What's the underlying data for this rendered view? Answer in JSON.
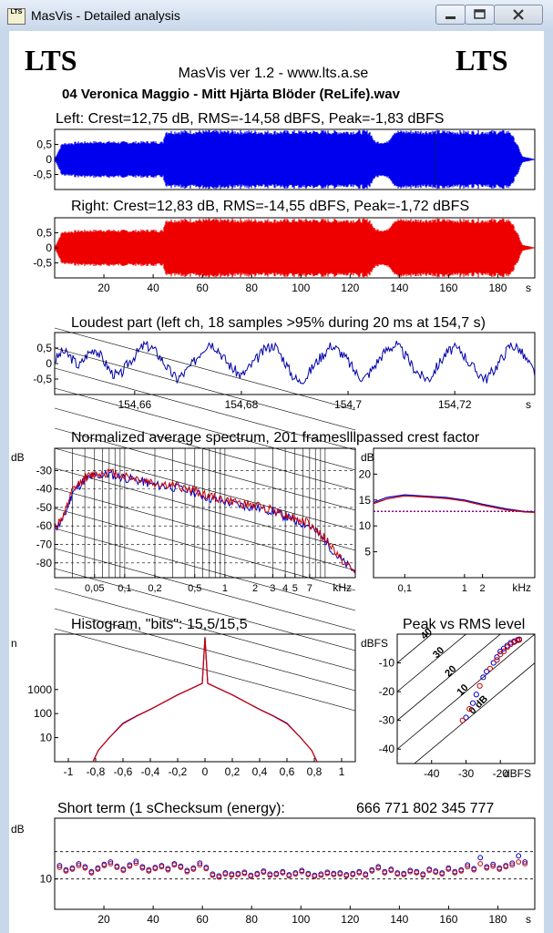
{
  "window": {
    "title": "MasVis - Detailed analysis",
    "icon_text": "LTS",
    "minimize_icon": "minimize-icon",
    "maximize_icon": "maximize-icon",
    "close_icon": "close-icon"
  },
  "header": {
    "logo_left": "LTS",
    "logo_right": "LTS",
    "app_version": "MasVis ver 1.2 - www.lts.a.se",
    "filename": "04 Veronica Maggio - Mitt Hjärta Blöder (ReLife).wav"
  },
  "chart_data": [
    {
      "type": "line",
      "title": "Left: Crest=12,75 dB, RMS=-14,58 dBFS, Peak=-1,83 dBFS",
      "y_ticks": [
        "0,5",
        "0",
        "-0,5"
      ],
      "ylim": [
        -1,
        1
      ],
      "xlim": [
        0,
        195
      ],
      "series": [
        {
          "values": [
            {
              "t": 0,
              "env": 0.02
            },
            {
              "t": 3,
              "env": 0.55
            },
            {
              "t": 10,
              "env": 0.6
            },
            {
              "t": 20,
              "env": 0.62
            },
            {
              "t": 30,
              "env": 0.6
            },
            {
              "t": 40,
              "env": 0.62
            },
            {
              "t": 44,
              "env": 0.6
            },
            {
              "t": 45,
              "env": 0.98
            },
            {
              "t": 70,
              "env": 0.98
            },
            {
              "t": 90,
              "env": 0.97
            },
            {
              "t": 108,
              "env": 0.98
            },
            {
              "t": 112,
              "env": 0.97
            },
            {
              "t": 128,
              "env": 0.98
            },
            {
              "t": 130,
              "env": 0.62
            },
            {
              "t": 135,
              "env": 0.6
            },
            {
              "t": 138,
              "env": 0.98
            },
            {
              "t": 155,
              "env": 0.98
            },
            {
              "t": 168,
              "env": 0.97
            },
            {
              "t": 185,
              "env": 0.98
            },
            {
              "t": 188,
              "env": 0.5
            },
            {
              "t": 190,
              "env": 0.1
            },
            {
              "t": 195,
              "env": 0.01
            }
          ]
        }
      ],
      "marker_at": 154.7
    },
    {
      "type": "line",
      "title": "Right: Crest=12,83 dB, RMS=-14,55 dBFS, Peak=-1,72 dBFS",
      "y_ticks": [
        "0,5",
        "0",
        "-0,5"
      ],
      "x_ticks": [
        "20",
        "40",
        "60",
        "80",
        "100",
        "120",
        "140",
        "160",
        "180"
      ],
      "x_tick_values": [
        20,
        40,
        60,
        80,
        100,
        120,
        140,
        160,
        180
      ],
      "x_unit": "s",
      "ylim": [
        -1,
        1
      ],
      "xlim": [
        0,
        195
      ],
      "series": [
        {
          "values": [
            {
              "t": 0,
              "env": 0.02
            },
            {
              "t": 3,
              "env": 0.55
            },
            {
              "t": 10,
              "env": 0.6
            },
            {
              "t": 20,
              "env": 0.62
            },
            {
              "t": 30,
              "env": 0.6
            },
            {
              "t": 40,
              "env": 0.62
            },
            {
              "t": 44,
              "env": 0.6
            },
            {
              "t": 45,
              "env": 0.98
            },
            {
              "t": 70,
              "env": 0.98
            },
            {
              "t": 90,
              "env": 0.97
            },
            {
              "t": 108,
              "env": 0.98
            },
            {
              "t": 112,
              "env": 0.97
            },
            {
              "t": 128,
              "env": 0.98
            },
            {
              "t": 130,
              "env": 0.65
            },
            {
              "t": 135,
              "env": 0.62
            },
            {
              "t": 138,
              "env": 0.98
            },
            {
              "t": 155,
              "env": 0.98
            },
            {
              "t": 168,
              "env": 0.97
            },
            {
              "t": 185,
              "env": 0.98
            },
            {
              "t": 188,
              "env": 0.5
            },
            {
              "t": 190,
              "env": 0.1
            },
            {
              "t": 195,
              "env": 0.01
            }
          ]
        }
      ]
    },
    {
      "type": "line",
      "title": "Loudest part (left ch, 18 samples >95% during 20 ms at 154,7 s)",
      "y_ticks": [
        "0,5",
        "0",
        "-0,5"
      ],
      "x_ticks": [
        "154,66",
        "154,68",
        "154,7",
        "154,72"
      ],
      "x_tick_values": [
        154.66,
        154.68,
        154.7,
        154.72
      ],
      "x_unit": "s",
      "xlim": [
        154.645,
        154.735
      ],
      "ylim": [
        -1,
        1
      ],
      "series": [
        {
          "values": [
            0.1,
            0.4,
            0.2,
            -0.1,
            0.3,
            0.5,
            0.1,
            -0.3,
            -0.4,
            0.0,
            0.3,
            0.6,
            0.5,
            0.2,
            -0.2,
            -0.5,
            -0.3,
            0.0,
            0.4,
            0.7,
            0.5,
            0.1,
            -0.2,
            -0.4,
            -0.1,
            0.2,
            0.5,
            0.6,
            0.2,
            -0.3,
            -0.6,
            -0.4,
            0.0,
            0.3,
            0.6,
            0.4,
            0.1,
            -0.3,
            -0.5,
            -0.2,
            0.2,
            0.5,
            0.6,
            0.3,
            -0.1,
            -0.4,
            -0.5,
            -0.1,
            0.3,
            0.5,
            0.4,
            0.0,
            -0.3,
            -0.5,
            -0.2,
            0.2,
            0.6,
            0.5,
            0.1,
            -0.3
          ]
        }
      ]
    },
    {
      "type": "line",
      "title": "Normalized average spectrum, 201 frameslllpassed crest factor",
      "ylabel": "dB",
      "y_ticks": [
        "-30",
        "-40",
        "-50",
        "-60",
        "-70",
        "-80"
      ],
      "y_tick_values": [
        -30,
        -40,
        -50,
        -60,
        -70,
        -80
      ],
      "ylim": [
        -88,
        -18
      ],
      "x_ticks": [
        "0,05",
        "0,1",
        "0,2",
        "0,5",
        "1",
        "2",
        "3",
        "4",
        "5",
        "7"
      ],
      "x_tick_values": [
        0.05,
        0.1,
        0.2,
        0.5,
        1,
        2,
        3,
        4,
        5,
        7
      ],
      "x_unit": "kHz",
      "xlim": [
        0.02,
        20
      ],
      "x_scale": "log",
      "series": [
        {
          "color": "#0000cc",
          "x": [
            0.02,
            0.025,
            0.03,
            0.04,
            0.05,
            0.07,
            0.1,
            0.15,
            0.2,
            0.3,
            0.5,
            0.7,
            1,
            1.5,
            2,
            3,
            4,
            5,
            7,
            10,
            14,
            20
          ],
          "y": [
            -62,
            -55,
            -42,
            -35,
            -33,
            -32,
            -34,
            -36,
            -38,
            -39,
            -42,
            -45,
            -47,
            -49,
            -50,
            -52,
            -55,
            -57,
            -60,
            -68,
            -78,
            -85
          ]
        },
        {
          "color": "#cc0000",
          "x": [
            0.02,
            0.025,
            0.03,
            0.04,
            0.05,
            0.07,
            0.1,
            0.15,
            0.2,
            0.3,
            0.5,
            0.7,
            1,
            1.5,
            2,
            3,
            4,
            5,
            7,
            10,
            14,
            20
          ],
          "y": [
            -61,
            -54,
            -41,
            -34,
            -32,
            -31,
            -33,
            -35,
            -37,
            -38,
            -41,
            -44,
            -46,
            -48,
            -49,
            -51,
            -54,
            -56,
            -59,
            -67,
            -77,
            -86
          ]
        }
      ]
    },
    {
      "type": "line",
      "ylabel": "dB",
      "y_ticks": [
        "20",
        "15",
        "10",
        "5"
      ],
      "y_tick_values": [
        20,
        15,
        10,
        5
      ],
      "ylim": [
        0,
        25
      ],
      "x_ticks": [
        "0,1",
        "1",
        "2"
      ],
      "x_tick_values": [
        0.1,
        1,
        2
      ],
      "x_unit": "kHz",
      "xlim": [
        0.03,
        15
      ],
      "x_scale": "log",
      "reference_level": 12.8,
      "series": [
        {
          "color": "#0000cc",
          "x": [
            0.03,
            0.05,
            0.1,
            0.2,
            0.5,
            1,
            2,
            5,
            10,
            15
          ],
          "y": [
            14.5,
            15.5,
            16.0,
            15.8,
            15.5,
            15.0,
            14.2,
            13.3,
            12.8,
            12.7
          ]
        },
        {
          "color": "#cc0000",
          "x": [
            0.03,
            0.05,
            0.1,
            0.2,
            0.5,
            1,
            2,
            5,
            10,
            15
          ],
          "y": [
            14.3,
            15.2,
            15.8,
            15.6,
            15.3,
            14.8,
            14.0,
            13.1,
            12.7,
            12.6
          ]
        }
      ]
    },
    {
      "type": "line",
      "title": "Histogram, \"bits\": 15,5/15,5",
      "ylabel": "n",
      "y_ticks": [
        "1000",
        "100",
        "10"
      ],
      "y_tick_values": [
        1000,
        100,
        10
      ],
      "ylim": [
        1,
        200000
      ],
      "y_scale": "log",
      "x_ticks": [
        "-1",
        "-0,8",
        "-0,6",
        "-0,4",
        "-0,2",
        "0",
        "0,2",
        "0,4",
        "0,6",
        "0,8",
        "1"
      ],
      "x_tick_values": [
        -1,
        -0.8,
        -0.6,
        -0.4,
        -0.2,
        0,
        0.2,
        0.4,
        0.6,
        0.8,
        1
      ],
      "xlim": [
        -1.1,
        1.1
      ],
      "series": [
        {
          "color": "#0000cc",
          "x": [
            -0.82,
            -0.78,
            -0.7,
            -0.6,
            -0.5,
            -0.4,
            -0.3,
            -0.2,
            -0.1,
            -0.02,
            0,
            0.02,
            0.1,
            0.2,
            0.3,
            0.4,
            0.5,
            0.6,
            0.7,
            0.78,
            0.82
          ],
          "y": [
            1,
            3,
            10,
            40,
            80,
            150,
            300,
            600,
            1100,
            1800,
            150000,
            1800,
            1100,
            600,
            300,
            150,
            80,
            40,
            10,
            3,
            1
          ]
        },
        {
          "color": "#cc0000",
          "x": [
            -0.82,
            -0.78,
            -0.7,
            -0.6,
            -0.5,
            -0.4,
            -0.3,
            -0.2,
            -0.1,
            -0.02,
            0,
            0.02,
            0.1,
            0.2,
            0.3,
            0.4,
            0.5,
            0.6,
            0.7,
            0.78,
            0.82
          ],
          "y": [
            1,
            3,
            10,
            38,
            78,
            148,
            298,
            598,
            1098,
            1790,
            140000,
            1790,
            1098,
            598,
            298,
            148,
            78,
            38,
            10,
            3,
            1
          ]
        }
      ]
    },
    {
      "type": "scatter",
      "title": "Peak vs RMS level",
      "ylabel": "dBFS",
      "y_ticks": [
        "-10",
        "-20",
        "-30",
        "-40"
      ],
      "y_tick_values": [
        -10,
        -20,
        -30,
        -40
      ],
      "ylim": [
        -45,
        0
      ],
      "x_ticks": [
        "-40",
        "-30",
        "-20"
      ],
      "x_tick_values": [
        -40,
        -30,
        -20
      ],
      "x_unit": "dBFS",
      "xlim": [
        -50,
        -10
      ],
      "crest_lines": [
        "40",
        "30",
        "20",
        "10",
        "0 dB"
      ],
      "crest_values": [
        40,
        30,
        20,
        10,
        0
      ],
      "series": [
        {
          "color": "#0000cc",
          "points": [
            [
              -30,
              -29
            ],
            [
              -28,
              -24
            ],
            [
              -27,
              -21
            ],
            [
              -25,
              -15
            ],
            [
              -24,
              -13
            ],
            [
              -22,
              -10
            ],
            [
              -21,
              -8
            ],
            [
              -20,
              -6
            ],
            [
              -19,
              -5
            ],
            [
              -18,
              -4
            ],
            [
              -17,
              -3
            ],
            [
              -16,
              -2.5
            ],
            [
              -15,
              -2
            ],
            [
              -14.5,
              -1.8
            ]
          ]
        },
        {
          "color": "#cc0000",
          "points": [
            [
              -31,
              -30
            ],
            [
              -29,
              -26
            ],
            [
              -26,
              -18
            ],
            [
              -23,
              -12
            ],
            [
              -21,
              -9
            ],
            [
              -20,
              -7
            ],
            [
              -19,
              -6
            ],
            [
              -18,
              -4.5
            ],
            [
              -17,
              -3.5
            ],
            [
              -16,
              -2.8
            ],
            [
              -15,
              -2.2
            ],
            [
              -14.5,
              -2
            ]
          ]
        }
      ]
    },
    {
      "type": "scatter",
      "title": "Short term (1 sChecksum (energy):",
      "checksum": "666 771 802 345 777",
      "ylabel": "dB",
      "y_ticks": [
        "10"
      ],
      "y_tick_values": [
        10
      ],
      "ylim": [
        5,
        20
      ],
      "x_ticks": [
        "20",
        "40",
        "60",
        "80",
        "100",
        "120",
        "140",
        "160",
        "180"
      ],
      "x_tick_values": [
        20,
        40,
        60,
        80,
        100,
        120,
        140,
        160,
        180
      ],
      "x_unit": "s",
      "xlim": [
        0,
        195
      ],
      "reference_lines": [
        14.5,
        10
      ],
      "series": [
        {
          "color": "#0000cc",
          "values": [
            12.2,
            11.5,
            11.8,
            12.5,
            12.0,
            11.2,
            11.8,
            12.4,
            12.8,
            12.1,
            11.6,
            12.3,
            12.9,
            12.0,
            11.5,
            11.9,
            12.2,
            11.7,
            12.5,
            12.1,
            11.4,
            11.8,
            12.6,
            11.9,
            10.8,
            10.5,
            11.0,
            10.8,
            10.9,
            11.1,
            10.6,
            10.9,
            11.3,
            10.8,
            10.9,
            11.2,
            10.7,
            11.0,
            11.4,
            10.9,
            10.6,
            10.8,
            11.1,
            10.9,
            11.0,
            10.7,
            10.9,
            11.2,
            10.8,
            11.5,
            12.0,
            11.2,
            11.6,
            11.0,
            10.9,
            11.4,
            11.2,
            10.8,
            11.6,
            11.3,
            11.0,
            11.8,
            11.2,
            11.5,
            12.3,
            11.7,
            13.5,
            12.0,
            12.4,
            11.8,
            12.2,
            12.6,
            13.8,
            12.8
          ]
        },
        {
          "color": "#cc0000",
          "values": [
            11.9,
            11.3,
            11.6,
            12.2,
            11.8,
            11.0,
            11.6,
            12.2,
            12.5,
            11.9,
            11.4,
            12.1,
            12.6,
            11.8,
            11.3,
            11.7,
            12.0,
            11.5,
            12.3,
            11.9,
            11.2,
            11.6,
            12.3,
            11.7,
            10.6,
            10.3,
            10.8,
            10.6,
            10.7,
            10.9,
            10.4,
            10.7,
            11.1,
            10.6,
            10.7,
            11.0,
            10.5,
            10.8,
            11.2,
            10.7,
            10.4,
            10.6,
            10.9,
            10.7,
            10.8,
            10.5,
            10.7,
            11.0,
            10.6,
            11.3,
            11.8,
            11.0,
            11.4,
            10.8,
            10.7,
            11.2,
            11.0,
            10.6,
            11.4,
            11.1,
            10.8,
            11.6,
            11.0,
            11.3,
            12.0,
            11.5,
            12.5,
            11.8,
            12.1,
            11.6,
            12.0,
            12.3,
            12.8,
            12.5
          ]
        }
      ]
    }
  ]
}
